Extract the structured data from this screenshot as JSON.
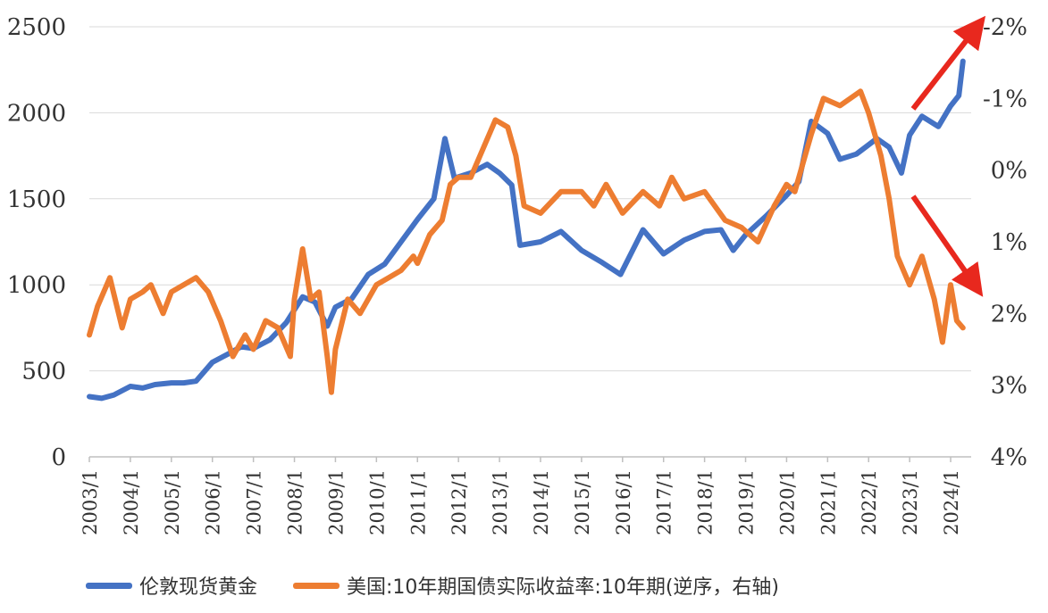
{
  "chart_data": {
    "type": "line",
    "title": "",
    "colors": {
      "gold": "#4472C4",
      "yield": "#ED7D31",
      "arrow": "#E8281E",
      "grid": "#D9D9D9"
    },
    "x_ticks": [
      "2003/1",
      "2004/1",
      "2005/1",
      "2006/1",
      "2007/1",
      "2008/1",
      "2009/1",
      "2010/1",
      "2011/1",
      "2012/1",
      "2013/1",
      "2014/1",
      "2015/1",
      "2016/1",
      "2017/1",
      "2018/1",
      "2019/1",
      "2020/1",
      "2021/1",
      "2022/1",
      "2023/1",
      "2024/1"
    ],
    "y_left": {
      "ticks": [
        "0",
        "500",
        "1000",
        "1500",
        "2000",
        "2500"
      ],
      "lim": [
        0,
        2500
      ]
    },
    "y_right": {
      "ticks": [
        "4%",
        "3%",
        "2%",
        "1%",
        "0%",
        "-1%",
        "-2%"
      ],
      "lim": [
        4,
        -2
      ],
      "inverted": true
    },
    "series": [
      {
        "name": "伦敦现货黄金",
        "axis": "left",
        "x": [
          2003.0,
          2003.3,
          2003.6,
          2004.0,
          2004.3,
          2004.6,
          2005.0,
          2005.3,
          2005.6,
          2006.0,
          2006.4,
          2006.7,
          2007.0,
          2007.4,
          2007.8,
          2008.2,
          2008.5,
          2008.8,
          2009.0,
          2009.4,
          2009.8,
          2010.2,
          2010.6,
          2011.0,
          2011.4,
          2011.67,
          2011.9,
          2012.3,
          2012.7,
          2013.0,
          2013.3,
          2013.5,
          2014.0,
          2014.5,
          2015.0,
          2015.5,
          2015.95,
          2016.5,
          2017.0,
          2017.5,
          2018.0,
          2018.4,
          2018.7,
          2019.0,
          2019.5,
          2020.0,
          2020.3,
          2020.6,
          2021.0,
          2021.3,
          2021.7,
          2022.2,
          2022.5,
          2022.8,
          2023.0,
          2023.3,
          2023.7,
          2024.0,
          2024.2,
          2024.3
        ],
        "values": [
          350,
          340,
          360,
          410,
          400,
          420,
          430,
          430,
          440,
          550,
          600,
          640,
          630,
          680,
          780,
          930,
          900,
          760,
          870,
          920,
          1060,
          1120,
          1250,
          1380,
          1500,
          1850,
          1620,
          1650,
          1700,
          1650,
          1580,
          1230,
          1250,
          1310,
          1200,
          1130,
          1060,
          1320,
          1180,
          1260,
          1310,
          1320,
          1200,
          1290,
          1400,
          1520,
          1600,
          1950,
          1880,
          1730,
          1760,
          1850,
          1800,
          1650,
          1870,
          1980,
          1920,
          2040,
          2100,
          2300
        ]
      },
      {
        "name": "美国:10年期国债实际收益率:10年期(逆序，右轴)",
        "axis": "right",
        "x": [
          2003.0,
          2003.2,
          2003.5,
          2003.8,
          2004.0,
          2004.3,
          2004.5,
          2004.8,
          2005.0,
          2005.3,
          2005.6,
          2005.9,
          2006.2,
          2006.5,
          2006.8,
          2007.0,
          2007.3,
          2007.6,
          2007.9,
          2008.0,
          2008.2,
          2008.4,
          2008.6,
          2008.8,
          2008.9,
          2009.0,
          2009.3,
          2009.6,
          2010.0,
          2010.3,
          2010.6,
          2010.9,
          2011.0,
          2011.3,
          2011.6,
          2011.8,
          2012.0,
          2012.3,
          2012.6,
          2012.9,
          2013.2,
          2013.4,
          2013.6,
          2014.0,
          2014.5,
          2015.0,
          2015.3,
          2015.6,
          2016.0,
          2016.5,
          2016.9,
          2017.2,
          2017.5,
          2018.0,
          2018.5,
          2018.9,
          2019.3,
          2019.7,
          2020.0,
          2020.2,
          2020.6,
          2020.9,
          2021.3,
          2021.8,
          2022.0,
          2022.3,
          2022.5,
          2022.7,
          2023.0,
          2023.3,
          2023.6,
          2023.8,
          2024.0,
          2024.15,
          2024.3
        ],
        "values": [
          2.3,
          1.9,
          1.5,
          2.2,
          1.8,
          1.7,
          1.6,
          2.0,
          1.7,
          1.6,
          1.5,
          1.7,
          2.1,
          2.6,
          2.3,
          2.5,
          2.1,
          2.2,
          2.6,
          1.8,
          1.1,
          1.8,
          1.7,
          2.6,
          3.1,
          2.5,
          1.8,
          2.0,
          1.6,
          1.5,
          1.4,
          1.2,
          1.3,
          0.9,
          0.7,
          0.2,
          0.1,
          0.1,
          -0.3,
          -0.7,
          -0.6,
          -0.2,
          0.5,
          0.6,
          0.3,
          0.3,
          0.5,
          0.2,
          0.6,
          0.3,
          0.5,
          0.1,
          0.4,
          0.3,
          0.7,
          0.8,
          1.0,
          0.5,
          0.2,
          0.3,
          -0.5,
          -1.0,
          -0.9,
          -1.1,
          -0.8,
          -0.2,
          0.4,
          1.2,
          1.6,
          1.2,
          1.8,
          2.4,
          1.6,
          2.1,
          2.2
        ]
      }
    ],
    "annotations": [
      "up-arrow",
      "down-arrow"
    ]
  }
}
